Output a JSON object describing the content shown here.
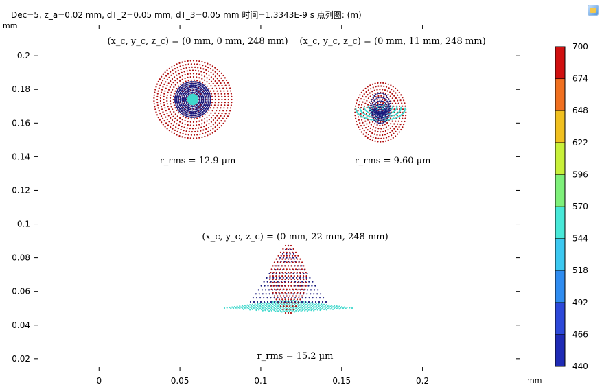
{
  "header": {
    "title": "Dec=5, z_a=0.02 mm, dT_2=0.05 mm, dT_3=0.05 mm 时间=1.3343E-9 s   点列图: (m)"
  },
  "icons": {
    "app": "comsol-app-icon"
  },
  "chart_data": {
    "type": "scatter",
    "title": "点列图: (m)",
    "xlabel": "mm",
    "ylabel": "mm",
    "xlim": [
      -0.04,
      0.26
    ],
    "ylim": [
      0.013,
      0.218
    ],
    "xticks": [
      0,
      0.05,
      0.1,
      0.15,
      0.2
    ],
    "xtick_labels": [
      "0",
      "0.05",
      "0.1",
      "0.15",
      "0.2"
    ],
    "yticks": [
      0.02,
      0.04,
      0.06,
      0.08,
      0.1,
      0.12,
      0.14,
      0.16,
      0.18,
      0.2
    ],
    "ytick_labels": [
      "0.02",
      "0.04",
      "0.06",
      "0.08",
      "0.1",
      "0.12",
      "0.14",
      "0.16",
      "0.18",
      "0.2"
    ],
    "grid": false,
    "colorbar": {
      "label_values": [
        440,
        466,
        492,
        518,
        544,
        570,
        596,
        622,
        648,
        674,
        700
      ],
      "band_colors": [
        "#1a1a7e",
        "#1f2bb5",
        "#2d49d9",
        "#2f8cf0",
        "#3cc8f0",
        "#48e8d8",
        "#7ef07a",
        "#c8f03a",
        "#f0c020",
        "#f07020",
        "#d01010"
      ],
      "band_values": [
        453,
        479,
        505,
        531,
        557,
        583,
        609,
        635,
        661,
        687
      ]
    },
    "wavelength_colors": {
      "440": "#1a1a7e",
      "570": "#40d8cc",
      "700": "#b01010"
    },
    "spots": [
      {
        "field_label": "(x_c, y_c, z_c) = (0 mm, 0 mm, 248 mm)",
        "center": [
          0.058,
          0.174
        ],
        "rms_label": "r_rms = 12.9 µm",
        "shape": "circle",
        "radius_red": 0.024,
        "radius_blue": 0.011,
        "radius_cyan": 0.0035
      },
      {
        "field_label": "(x_c, y_c, z_c) = (0 mm, 11 mm, 248 mm)",
        "center": [
          0.174,
          0.168
        ],
        "rms_label": "r_rms = 9.60 µm",
        "shape": "teardrop"
      },
      {
        "field_label": "(x_c, y_c, z_c) = (0 mm, 22 mm, 248 mm)",
        "center": [
          0.117,
          0.06
        ],
        "rms_label": "r_rms = 15.2 µm",
        "shape": "triangle"
      }
    ]
  }
}
